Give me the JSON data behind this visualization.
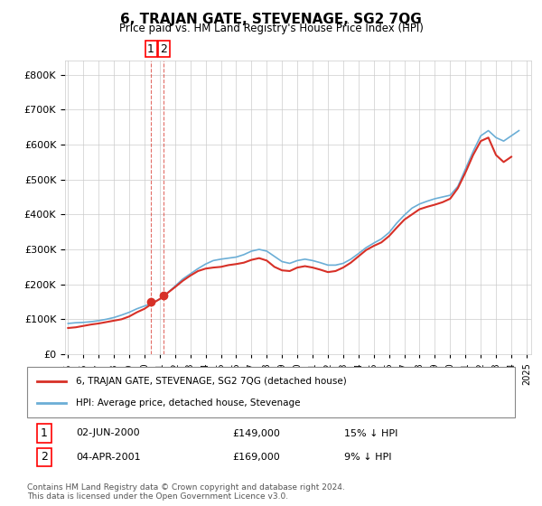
{
  "title": "6, TRAJAN GATE, STEVENAGE, SG2 7QG",
  "subtitle": "Price paid vs. HM Land Registry's House Price Index (HPI)",
  "legend_line1": "6, TRAJAN GATE, STEVENAGE, SG2 7QG (detached house)",
  "legend_line2": "HPI: Average price, detached house, Stevenage",
  "transaction1_label": "1",
  "transaction1_date": "02-JUN-2000",
  "transaction1_price": "£149,000",
  "transaction1_hpi": "15% ↓ HPI",
  "transaction2_label": "2",
  "transaction2_date": "04-APR-2001",
  "transaction2_price": "£169,000",
  "transaction2_hpi": "9% ↓ HPI",
  "footer": "Contains HM Land Registry data © Crown copyright and database right 2024.\nThis data is licensed under the Open Government Licence v3.0.",
  "hpi_color": "#6baed6",
  "price_color": "#d73027",
  "marker_color": "#d73027",
  "vline_color": "#d73027",
  "grid_color": "#cccccc",
  "bg_color": "#ffffff",
  "ylim": [
    0,
    840000
  ],
  "yticks": [
    0,
    100000,
    200000,
    300000,
    400000,
    500000,
    600000,
    700000,
    800000
  ],
  "hpi_x": [
    1995.0,
    1995.5,
    1996.0,
    1996.5,
    1997.0,
    1997.5,
    1998.0,
    1998.5,
    1999.0,
    1999.5,
    2000.0,
    2000.5,
    2001.0,
    2001.5,
    2002.0,
    2002.5,
    2003.0,
    2003.5,
    2004.0,
    2004.5,
    2005.0,
    2005.5,
    2006.0,
    2006.5,
    2007.0,
    2007.5,
    2008.0,
    2008.5,
    2009.0,
    2009.5,
    2010.0,
    2010.5,
    2011.0,
    2011.5,
    2012.0,
    2012.5,
    2013.0,
    2013.5,
    2014.0,
    2014.5,
    2015.0,
    2015.5,
    2016.0,
    2016.5,
    2017.0,
    2017.5,
    2018.0,
    2018.5,
    2019.0,
    2019.5,
    2020.0,
    2020.5,
    2021.0,
    2021.5,
    2022.0,
    2022.5,
    2023.0,
    2023.5,
    2024.0,
    2024.5
  ],
  "hpi_y": [
    88000,
    90000,
    91000,
    93000,
    96000,
    100000,
    105000,
    112000,
    120000,
    130000,
    138000,
    146000,
    158000,
    175000,
    195000,
    215000,
    230000,
    245000,
    258000,
    268000,
    272000,
    275000,
    278000,
    285000,
    295000,
    300000,
    295000,
    280000,
    265000,
    260000,
    268000,
    272000,
    268000,
    262000,
    255000,
    255000,
    260000,
    272000,
    288000,
    305000,
    318000,
    330000,
    348000,
    375000,
    398000,
    418000,
    430000,
    438000,
    445000,
    450000,
    455000,
    480000,
    530000,
    580000,
    625000,
    640000,
    620000,
    610000,
    625000,
    640000
  ],
  "price_x": [
    1995.0,
    1995.25,
    1995.5,
    1995.75,
    1996.0,
    1996.5,
    1997.0,
    1997.5,
    1998.0,
    1998.5,
    1999.0,
    1999.5,
    2000.0,
    2000.5,
    2001.0,
    2001.5,
    2002.0,
    2002.5,
    2003.0,
    2003.5,
    2004.0,
    2004.5,
    2005.0,
    2005.5,
    2006.0,
    2006.5,
    2007.0,
    2007.5,
    2008.0,
    2008.5,
    2009.0,
    2009.5,
    2010.0,
    2010.5,
    2011.0,
    2011.5,
    2012.0,
    2012.5,
    2013.0,
    2013.5,
    2014.0,
    2014.5,
    2015.0,
    2015.5,
    2016.0,
    2016.5,
    2017.0,
    2017.5,
    2018.0,
    2018.5,
    2019.0,
    2019.5,
    2020.0,
    2020.5,
    2021.0,
    2021.5,
    2022.0,
    2022.5,
    2023.0,
    2023.5,
    2024.0
  ],
  "price_y": [
    75000,
    76000,
    77000,
    79000,
    81000,
    85000,
    88000,
    92000,
    96000,
    100000,
    108000,
    120000,
    130000,
    145000,
    158000,
    175000,
    192000,
    210000,
    225000,
    238000,
    245000,
    248000,
    250000,
    255000,
    258000,
    262000,
    270000,
    275000,
    268000,
    250000,
    240000,
    238000,
    248000,
    252000,
    248000,
    242000,
    235000,
    238000,
    248000,
    262000,
    280000,
    298000,
    310000,
    320000,
    338000,
    362000,
    385000,
    400000,
    415000,
    422000,
    428000,
    435000,
    445000,
    475000,
    520000,
    570000,
    610000,
    620000,
    570000,
    550000,
    565000
  ],
  "sale1_x": 2000.42,
  "sale1_y": 149000,
  "sale2_x": 2001.25,
  "sale2_y": 169000,
  "vline1_x": 2000.42,
  "vline2_x": 2001.25,
  "xlim": [
    1994.8,
    2025.3
  ],
  "xticks": [
    1995,
    1996,
    1997,
    1998,
    1999,
    2000,
    2001,
    2002,
    2003,
    2004,
    2005,
    2006,
    2007,
    2008,
    2009,
    2010,
    2011,
    2012,
    2013,
    2014,
    2015,
    2016,
    2017,
    2018,
    2019,
    2020,
    2021,
    2022,
    2023,
    2024,
    2025
  ]
}
